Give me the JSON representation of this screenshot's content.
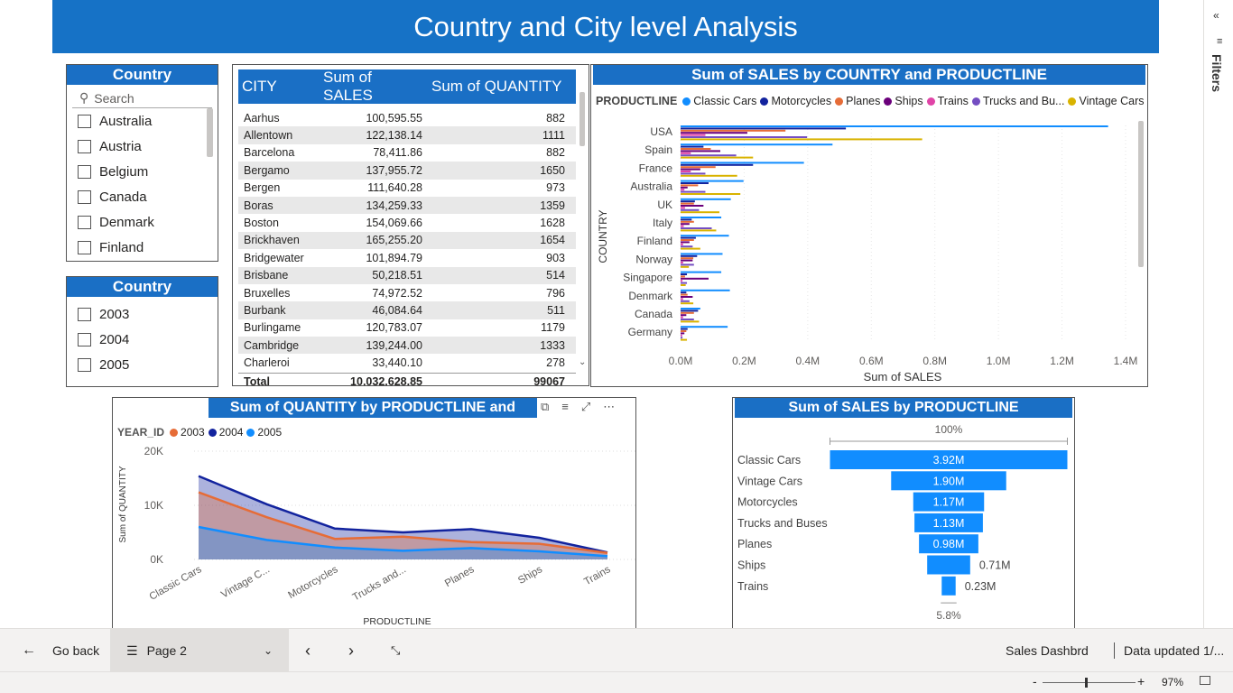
{
  "page_title": "Country and City level Analysis",
  "country_slicer": {
    "title": "Country",
    "search_placeholder": "Search",
    "items": [
      "Australia",
      "Austria",
      "Belgium",
      "Canada",
      "Denmark",
      "Finland"
    ]
  },
  "year_slicer": {
    "title": "Country",
    "items": [
      "2003",
      "2004",
      "2005"
    ]
  },
  "city_table": {
    "headers": [
      "CITY",
      "Sum of SALES",
      "Sum of QUANTITY"
    ],
    "rows": [
      [
        "Aarhus",
        "100,595.55",
        "882"
      ],
      [
        "Allentown",
        "122,138.14",
        "1111"
      ],
      [
        "Barcelona",
        "78,411.86",
        "882"
      ],
      [
        "Bergamo",
        "137,955.72",
        "1650"
      ],
      [
        "Bergen",
        "111,640.28",
        "973"
      ],
      [
        "Boras",
        "134,259.33",
        "1359"
      ],
      [
        "Boston",
        "154,069.66",
        "1628"
      ],
      [
        "Brickhaven",
        "165,255.20",
        "1654"
      ],
      [
        "Bridgewater",
        "101,894.79",
        "903"
      ],
      [
        "Brisbane",
        "50,218.51",
        "514"
      ],
      [
        "Bruxelles",
        "74,972.52",
        "796"
      ],
      [
        "Burbank",
        "46,084.64",
        "511"
      ],
      [
        "Burlingame",
        "120,783.07",
        "1179"
      ],
      [
        "Cambridge",
        "139,244.00",
        "1333"
      ],
      [
        "Charleroi",
        "33,440.10",
        "278"
      ]
    ],
    "total": [
      "Total",
      "10,032,628.85",
      "99067"
    ]
  },
  "bar_chart": {
    "title": "Sum of SALES by COUNTRY and PRODUCTLINE",
    "legend_title": "PRODUCTLINE",
    "xlabel": "Sum of SALES",
    "ylabel": "COUNTRY"
  },
  "area_chart": {
    "title": "Sum of QUANTITY by PRODUCTLINE and YEAR_ID",
    "legend_title": "YEAR_ID",
    "xlabel": "PRODUCTLINE",
    "ylabel": "Sum of QUANTITY"
  },
  "funnel_chart": {
    "title": "Sum of SALES by PRODUCTLINE",
    "top_pct": "100%",
    "bottom_pct": "5.8%"
  },
  "chart_data": [
    {
      "type": "bar",
      "title": "Sum of SALES by COUNTRY and PRODUCTLINE",
      "xlabel": "Sum of SALES",
      "ylabel": "COUNTRY",
      "categories": [
        "USA",
        "Spain",
        "France",
        "Australia",
        "UK",
        "Italy",
        "Finland",
        "Norway",
        "Singapore",
        "Denmark",
        "Canada",
        "Germany"
      ],
      "xlim": [
        0,
        1400000
      ],
      "x_ticks": [
        "0.0M",
        "0.2M",
        "0.4M",
        "0.6M",
        "0.8M",
        "1.0M",
        "1.2M",
        "1.4M"
      ],
      "legend_position": "top",
      "series": [
        {
          "name": "Classic Cars",
          "color": "#118dff",
          "values": [
            1345000,
            478000,
            388000,
            198000,
            158000,
            128000,
            152000,
            132000,
            128000,
            155000,
            62000,
            148000
          ]
        },
        {
          "name": "Motorcycles",
          "color": "#12239e",
          "values": [
            520000,
            72000,
            228000,
            88000,
            45000,
            35000,
            48000,
            52000,
            20000,
            18000,
            55000,
            22000
          ]
        },
        {
          "name": "Planes",
          "color": "#e66c37",
          "values": [
            330000,
            95000,
            110000,
            55000,
            42000,
            42000,
            42000,
            40000,
            14000,
            22000,
            42000,
            18000
          ]
        },
        {
          "name": "Ships",
          "color": "#6b007b",
          "values": [
            210000,
            125000,
            62000,
            22000,
            72000,
            28000,
            28000,
            38000,
            88000,
            38000,
            18000,
            12000
          ]
        },
        {
          "name": "Trains",
          "color": "#e044a7",
          "values": [
            78000,
            32000,
            32000,
            12000,
            14000,
            10000,
            8000,
            8000,
            6000,
            8000,
            8000,
            5000
          ]
        },
        {
          "name": "Trucks and Buses",
          "color": "#744ec2",
          "values": [
            398000,
            175000,
            78000,
            78000,
            58000,
            98000,
            38000,
            42000,
            20000,
            28000,
            42000,
            6000
          ]
        },
        {
          "name": "Vintage Cars",
          "color": "#d9b300",
          "values": [
            760000,
            228000,
            178000,
            188000,
            122000,
            112000,
            62000,
            26000,
            16000,
            40000,
            58000,
            20000
          ]
        }
      ]
    },
    {
      "type": "area",
      "title": "Sum of QUANTITY by PRODUCTLINE and YEAR_ID",
      "xlabel": "PRODUCTLINE",
      "ylabel": "Sum of QUANTITY",
      "categories": [
        "Classic Cars",
        "Vintage C...",
        "Motorcycles",
        "Trucks and...",
        "Planes",
        "Ships",
        "Trains"
      ],
      "ylim": [
        0,
        20000
      ],
      "y_ticks": [
        "0K",
        "10K",
        "20K"
      ],
      "legend_position": "top-left",
      "grid": true,
      "series": [
        {
          "name": "2003",
          "color": "#e66c37",
          "values": [
            12400,
            7800,
            3800,
            4200,
            3200,
            2900,
            1200
          ]
        },
        {
          "name": "2004",
          "color": "#12239e",
          "values": [
            15400,
            10200,
            5700,
            5000,
            5600,
            4000,
            1300
          ]
        },
        {
          "name": "2005",
          "color": "#118dff",
          "values": [
            6000,
            3600,
            2200,
            1600,
            2100,
            1500,
            600
          ]
        }
      ]
    },
    {
      "type": "funnel",
      "title": "Sum of SALES by PRODUCTLINE",
      "categories": [
        "Classic Cars",
        "Vintage Cars",
        "Motorcycles",
        "Trucks and Buses",
        "Planes",
        "Ships",
        "Trains"
      ],
      "values": [
        3.92,
        1.9,
        1.17,
        1.13,
        0.98,
        0.71,
        0.23
      ],
      "labels": [
        "3.92M",
        "1.90M",
        "1.17M",
        "1.13M",
        "0.98M",
        "0.71M",
        "0.23M"
      ],
      "unit": "M",
      "color": "#118dff"
    }
  ],
  "bottom_nav": {
    "go_back": "Go back",
    "page": "Page 2",
    "report_name": "Sales Dashbrd",
    "data_updated": "Data updated 1/..."
  },
  "status": {
    "zoom": "97%",
    "minus": "-",
    "plus": "+"
  },
  "filters_pane": {
    "label": "Filters"
  }
}
